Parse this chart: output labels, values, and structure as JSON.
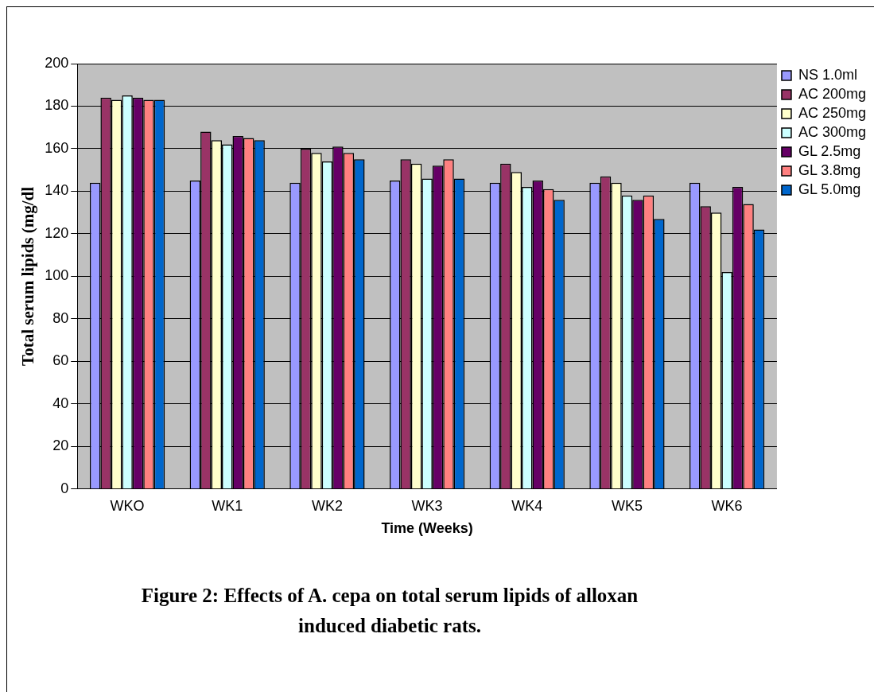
{
  "chart_data": {
    "type": "bar",
    "title": "Figure 2: Effects of A. cepa  on total serum lipids of alloxan induced diabetic rats.",
    "xlabel": "Time (Weeks)",
    "ylabel": "Total serum lipids (mg/dl",
    "categories": [
      "WKO",
      "WK1",
      "WK2",
      "WK3",
      "WK4",
      "WK5",
      "WK6"
    ],
    "series": [
      {
        "name": "NS 1.0ml",
        "color": "#9999ff",
        "values": [
          144,
          145,
          144,
          145,
          144,
          144,
          144
        ]
      },
      {
        "name": "AC 200mg",
        "color": "#993366",
        "values": [
          184,
          168,
          160,
          155,
          153,
          147,
          133
        ]
      },
      {
        "name": "AC 250mg",
        "color": "#ffffcc",
        "values": [
          183,
          164,
          158,
          153,
          149,
          144,
          130
        ]
      },
      {
        "name": "AC 300mg",
        "color": "#ccffff",
        "values": [
          185,
          162,
          154,
          146,
          142,
          138,
          102
        ]
      },
      {
        "name": "GL 2.5mg",
        "color": "#660066",
        "values": [
          184,
          166,
          161,
          152,
          145,
          136,
          142
        ]
      },
      {
        "name": "GL 3.8mg",
        "color": "#ff8080",
        "values": [
          183,
          165,
          158,
          155,
          141,
          138,
          134
        ]
      },
      {
        "name": "GL 5.0mg",
        "color": "#0066cc",
        "values": [
          183,
          164,
          155,
          146,
          136,
          127,
          122
        ]
      }
    ],
    "ylim": [
      0,
      200
    ],
    "yticks": [
      0,
      20,
      40,
      60,
      80,
      100,
      120,
      140,
      160,
      180,
      200
    ],
    "grid": "y",
    "legend": "right"
  }
}
